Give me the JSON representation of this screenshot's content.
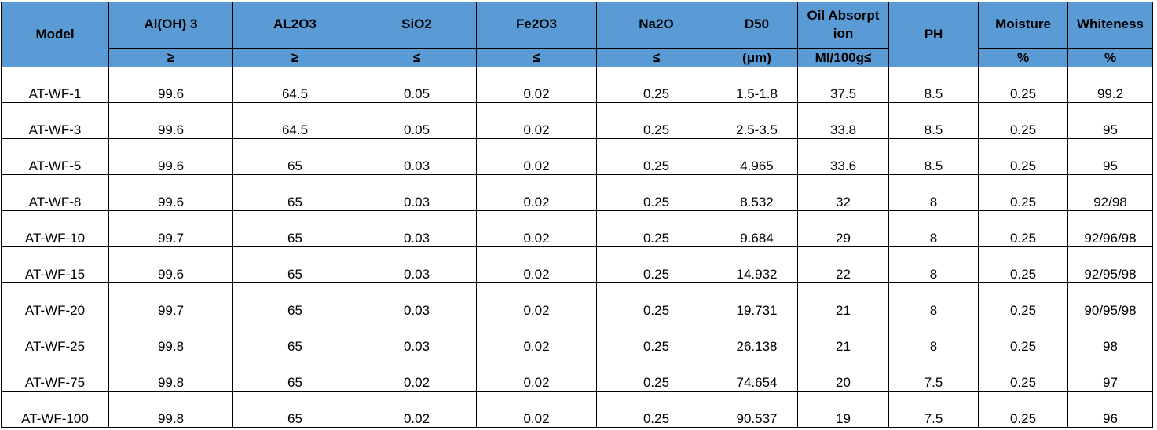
{
  "table": {
    "columns": [
      {
        "label": "Model",
        "unit": null
      },
      {
        "label": "Al(OH) 3",
        "unit": "≥"
      },
      {
        "label": "AL2O3",
        "unit": "≥"
      },
      {
        "label": "SiO2",
        "unit": "≤"
      },
      {
        "label": "Fe2O3",
        "unit": "≤"
      },
      {
        "label": "Na2O",
        "unit": "≤"
      },
      {
        "label": "D50",
        "unit": "(μm)"
      },
      {
        "label": "Oil Absorpt ion",
        "unit": "Ml/100g≤"
      },
      {
        "label": "PH",
        "unit": null
      },
      {
        "label": "Moisture",
        "unit": "%"
      },
      {
        "label": "Whiteness",
        "unit": "%"
      }
    ],
    "rows": [
      [
        "AT-WF-1",
        "99.6",
        "64.5",
        "0.05",
        "0.02",
        "0.25",
        "1.5-1.8",
        "37.5",
        "8.5",
        "0.25",
        "99.2"
      ],
      [
        "AT-WF-3",
        "99.6",
        "64.5",
        "0.05",
        "0.02",
        "0.25",
        "2.5-3.5",
        "33.8",
        "8.5",
        "0.25",
        "95"
      ],
      [
        "AT-WF-5",
        "99.6",
        "65",
        "0.03",
        "0.02",
        "0.25",
        "4.965",
        "33.6",
        "8.5",
        "0.25",
        "95"
      ],
      [
        "AT-WF-8",
        "99.6",
        "65",
        "0.03",
        "0.02",
        "0.25",
        "8.532",
        "32",
        "8",
        "0.25",
        "92/98"
      ],
      [
        "AT-WF-10",
        "99.7",
        "65",
        "0.03",
        "0.02",
        "0.25",
        "9.684",
        "29",
        "8",
        "0.25",
        "92/96/98"
      ],
      [
        "AT-WF-15",
        "99.6",
        "65",
        "0.03",
        "0.02",
        "0.25",
        "14.932",
        "22",
        "8",
        "0.25",
        "92/95/98"
      ],
      [
        "AT-WF-20",
        "99.7",
        "65",
        "0.03",
        "0.02",
        "0.25",
        "19.731",
        "21",
        "8",
        "0.25",
        "90/95/98"
      ],
      [
        "AT-WF-25",
        "99.8",
        "65",
        "0.03",
        "0.02",
        "0.25",
        "26.138",
        "21",
        "8",
        "0.25",
        "98"
      ],
      [
        "AT-WF-75",
        "99.8",
        "65",
        "0.02",
        "0.02",
        "0.25",
        "74.654",
        "20",
        "7.5",
        "0.25",
        "97"
      ],
      [
        "AT-WF-100",
        "99.8",
        "65",
        "0.02",
        "0.02",
        "0.25",
        "90.537",
        "19",
        "7.5",
        "0.25",
        "96"
      ]
    ]
  },
  "colors": {
    "header_bg": "#5b9bd5",
    "border": "#000000",
    "cell_bg": "#ffffff"
  }
}
